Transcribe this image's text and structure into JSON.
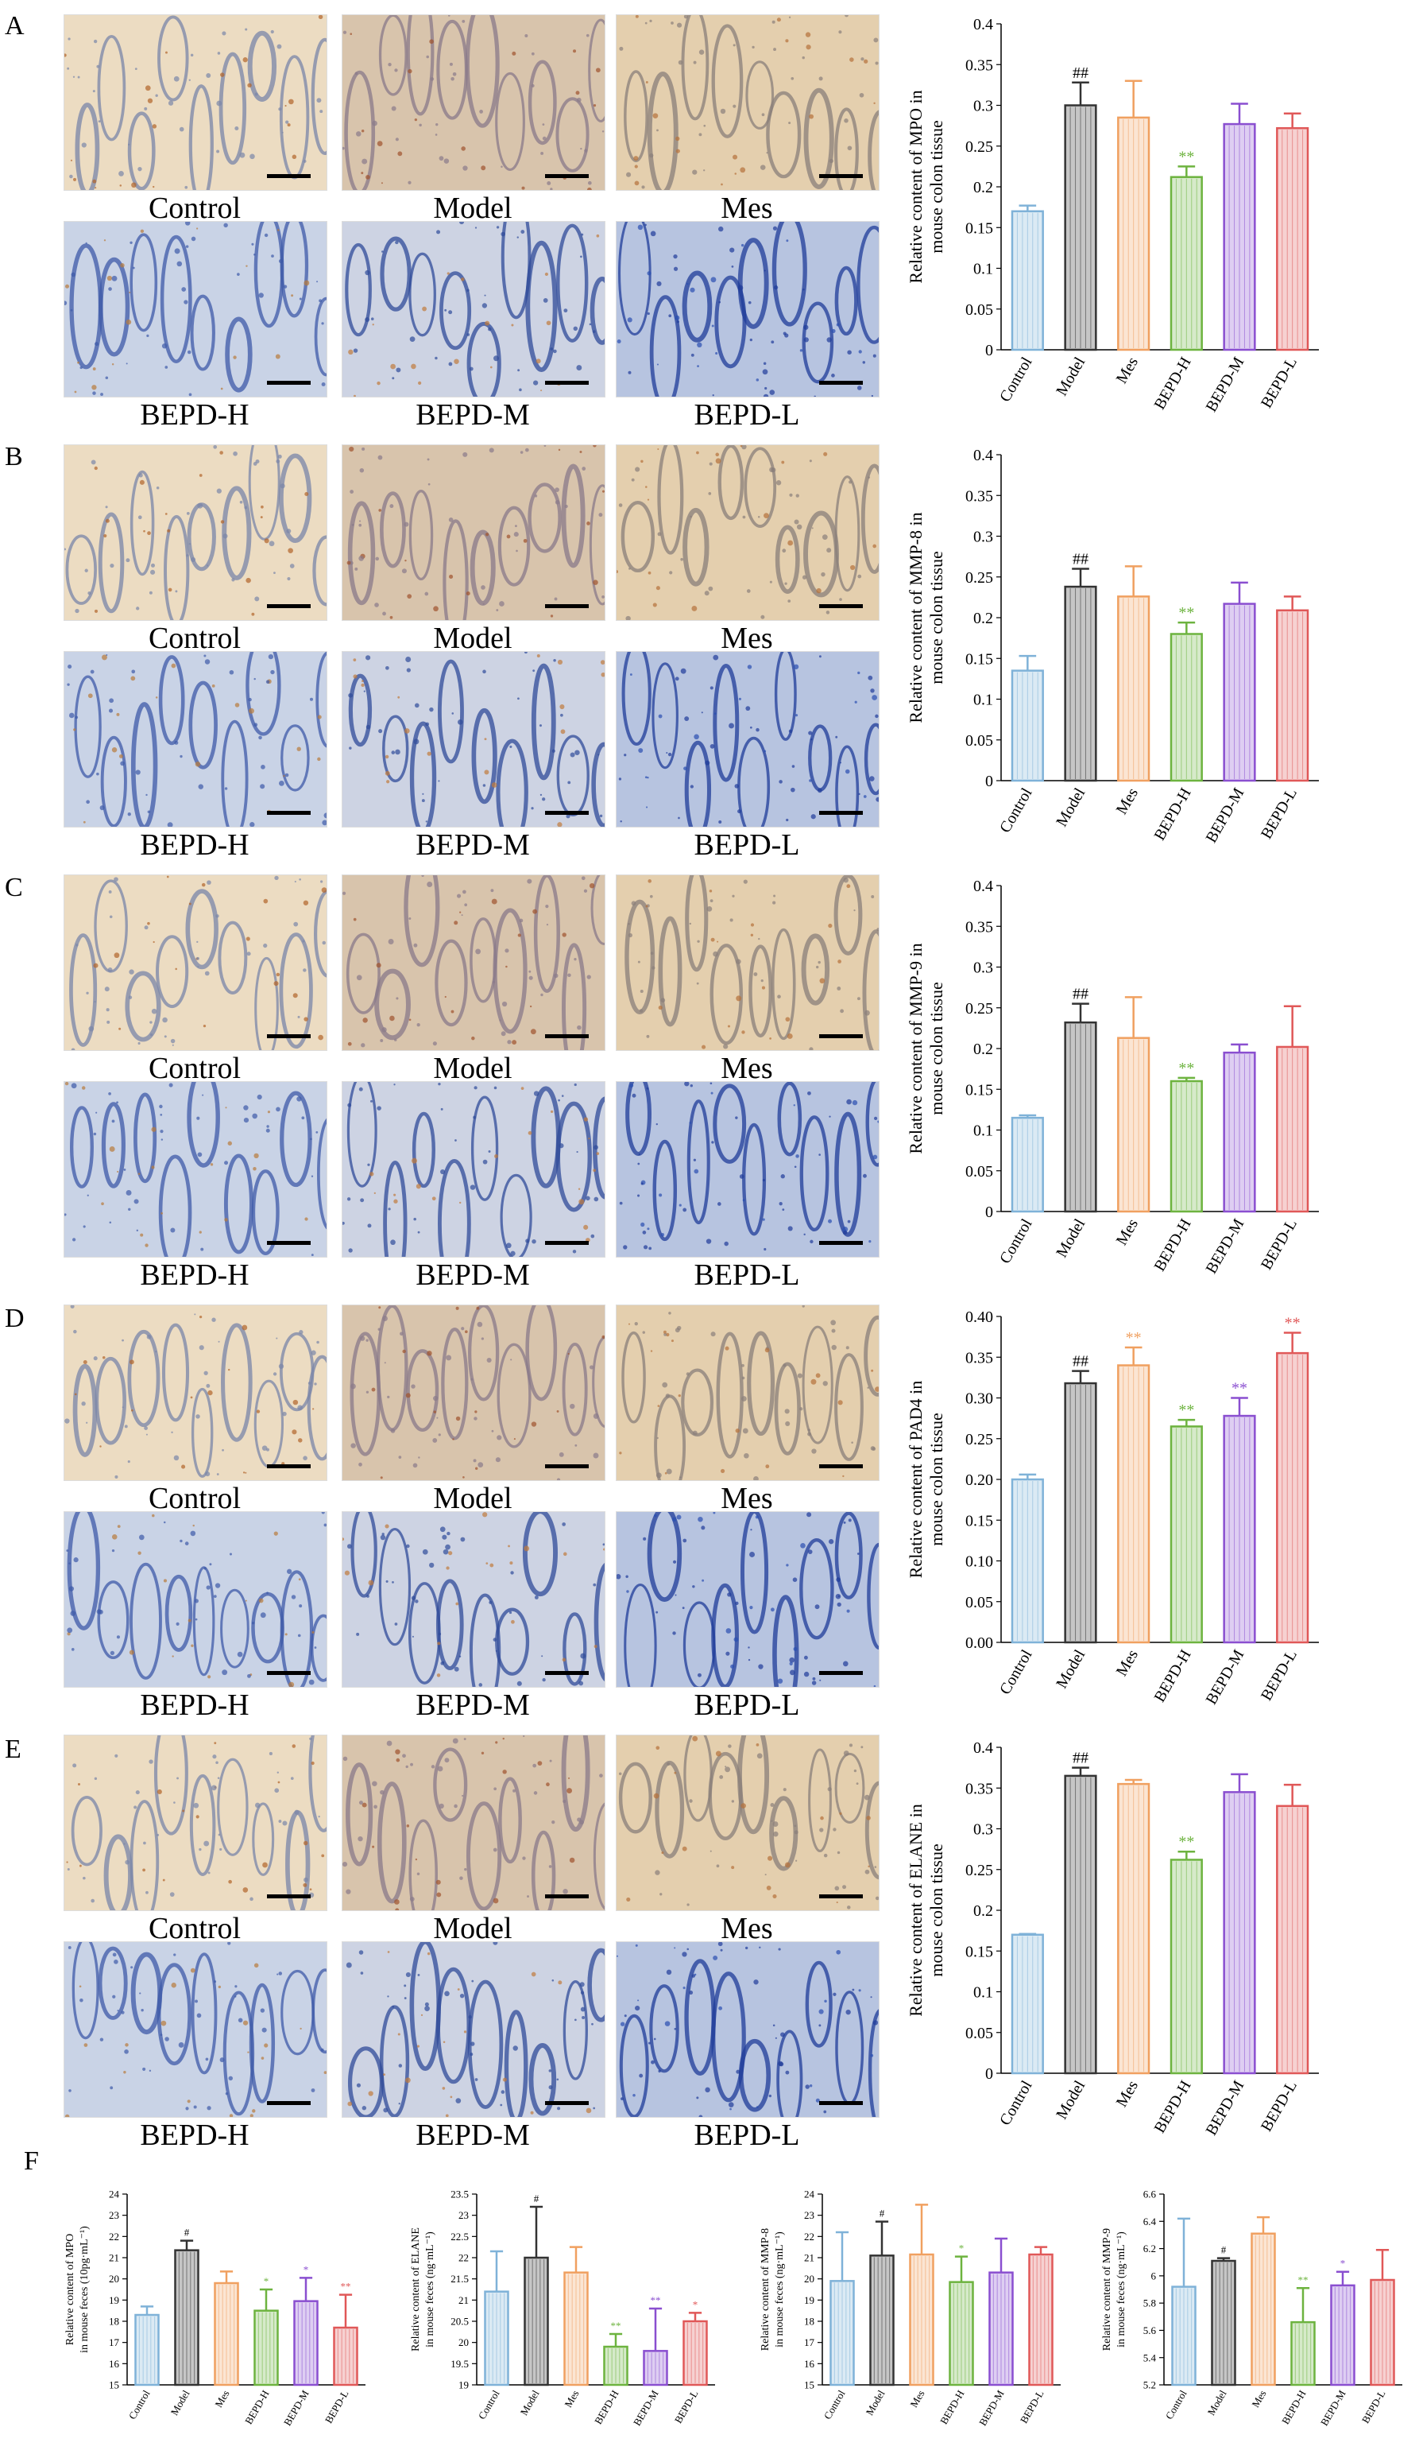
{
  "panel_letters": [
    "A",
    "B",
    "C",
    "D",
    "E",
    "F"
  ],
  "micro_groups": [
    "Control",
    "Model",
    "Mes",
    "BEPD-H",
    "BEPD-M",
    "BEPD-L"
  ],
  "colors": {
    "Control": "#7fb2d8",
    "Model": "#333333",
    "Mes": "#f0a060",
    "BEPD-H": "#6db33f",
    "BEPD-M": "#8a4fd0",
    "BEPD-L": "#e05858"
  },
  "stain_palettes": [
    {
      "bg": "#ecdcc2",
      "crypt": "#7a86a8",
      "dot": "#b2642a"
    },
    {
      "bg": "#d8c4ac",
      "crypt": "#8a7a8a",
      "dot": "#a0522d"
    },
    {
      "bg": "#e4cfae",
      "crypt": "#8a7f7a",
      "dot": "#b5703a"
    },
    {
      "bg": "#c9d3e6",
      "crypt": "#3d5aa8",
      "dot": "#b87a3a"
    },
    {
      "bg": "#cdd3e3",
      "crypt": "#2f4b9a",
      "dot": "#c07b3c"
    },
    {
      "bg": "#b7c4e0",
      "crypt": "#1f3c9a",
      "dot": "#2a4fb0"
    }
  ],
  "chart_data": [
    {
      "id": "A",
      "type": "bar",
      "categories": [
        "Control",
        "Model",
        "Mes",
        "BEPD-H",
        "BEPD-M",
        "BEPD-L"
      ],
      "values": [
        0.17,
        0.3,
        0.285,
        0.212,
        0.277,
        0.272
      ],
      "errors": [
        0.007,
        0.028,
        0.045,
        0.013,
        0.025,
        0.018
      ],
      "annotations": [
        "",
        "##",
        "",
        "**",
        "",
        ""
      ],
      "ylabel_lines": [
        "Relative content of MPO in",
        "mouse colon tissue"
      ],
      "ylim": [
        0,
        0.4
      ],
      "yticks": [
        "0",
        "0.05",
        "0.1",
        "0.15",
        "0.2",
        "0.25",
        "0.3",
        "0.35",
        "0.4"
      ]
    },
    {
      "id": "B",
      "type": "bar",
      "categories": [
        "Control",
        "Model",
        "Mes",
        "BEPD-H",
        "BEPD-M",
        "BEPD-L"
      ],
      "values": [
        0.135,
        0.238,
        0.226,
        0.18,
        0.217,
        0.209
      ],
      "errors": [
        0.018,
        0.022,
        0.037,
        0.014,
        0.026,
        0.017
      ],
      "annotations": [
        "",
        "##",
        "",
        "**",
        "",
        ""
      ],
      "ylabel_lines": [
        "Relative content of MMP-8 in",
        "mouse colon tissue"
      ],
      "ylim": [
        0,
        0.4
      ],
      "yticks": [
        "0",
        "0.05",
        "0.1",
        "0.15",
        "0.2",
        "0.25",
        "0.3",
        "0.35",
        "0.4"
      ]
    },
    {
      "id": "C",
      "type": "bar",
      "categories": [
        "Control",
        "Model",
        "Mes",
        "BEPD-H",
        "BEPD-M",
        "BEPD-L"
      ],
      "values": [
        0.115,
        0.232,
        0.213,
        0.16,
        0.195,
        0.202
      ],
      "errors": [
        0.003,
        0.023,
        0.05,
        0.004,
        0.01,
        0.05
      ],
      "annotations": [
        "",
        "##",
        "",
        "**",
        "",
        ""
      ],
      "ylabel_lines": [
        "Relative content of MMP-9 in",
        "mouse colon tissue"
      ],
      "ylim": [
        0,
        0.4
      ],
      "yticks": [
        "0",
        "0.05",
        "0.1",
        "0.15",
        "0.2",
        "0.25",
        "0.3",
        "0.35",
        "0.4"
      ]
    },
    {
      "id": "D",
      "type": "bar",
      "categories": [
        "Control",
        "Model",
        "Mes",
        "BEPD-H",
        "BEPD-M",
        "BEPD-L"
      ],
      "values": [
        0.2,
        0.318,
        0.34,
        0.265,
        0.278,
        0.355
      ],
      "errors": [
        0.006,
        0.015,
        0.022,
        0.008,
        0.022,
        0.025
      ],
      "annotations": [
        "",
        "##",
        "**",
        "**",
        "**",
        "**"
      ],
      "ylabel_lines": [
        "Relative content of PAD4 in",
        "mouse colon tissue"
      ],
      "ylim": [
        0,
        0.4
      ],
      "yticks": [
        "0.00",
        "0.05",
        "0.10",
        "0.15",
        "0.20",
        "0.25",
        "0.30",
        "0.35",
        "0.40"
      ]
    },
    {
      "id": "E",
      "type": "bar",
      "categories": [
        "Control",
        "Model",
        "Mes",
        "BEPD-H",
        "BEPD-M",
        "BEPD-L"
      ],
      "values": [
        0.17,
        0.365,
        0.355,
        0.262,
        0.345,
        0.328
      ],
      "errors": [
        0.001,
        0.01,
        0.005,
        0.01,
        0.022,
        0.026
      ],
      "annotations": [
        "",
        "##",
        "",
        "**",
        "",
        ""
      ],
      "ylabel_lines": [
        "Relative content of ELANE in",
        "mouse colon tissue"
      ],
      "ylim": [
        0,
        0.4
      ],
      "yticks": [
        "0",
        "0.05",
        "0.1",
        "0.15",
        "0.2",
        "0.25",
        "0.3",
        "0.35",
        "0.4"
      ]
    },
    {
      "id": "F1",
      "type": "bar",
      "categories": [
        "Control",
        "Model",
        "Mes",
        "BEPD-H",
        "BEPD-M",
        "BEPD-L"
      ],
      "values": [
        18.3,
        21.35,
        19.8,
        18.5,
        18.95,
        17.7
      ],
      "errors": [
        0.4,
        0.45,
        0.55,
        1.0,
        1.1,
        1.55
      ],
      "annotations": [
        "",
        "#",
        "",
        "*",
        "*",
        "**"
      ],
      "ylabel_lines": [
        "Relative content of MPO",
        "in mouse feces (10pg·mL⁻¹)"
      ],
      "ylim": [
        15,
        24
      ],
      "yticks": [
        "15",
        "16",
        "17",
        "18",
        "19",
        "20",
        "21",
        "22",
        "23",
        "24"
      ]
    },
    {
      "id": "F2",
      "type": "bar",
      "categories": [
        "Control",
        "Model",
        "Mes",
        "BEPD-H",
        "BEPD-M",
        "BEPD-L"
      ],
      "values": [
        21.2,
        22.0,
        21.65,
        19.9,
        19.8,
        20.5
      ],
      "errors": [
        0.95,
        1.2,
        0.6,
        0.3,
        1.0,
        0.2
      ],
      "annotations": [
        "",
        "#",
        "",
        "**",
        "**",
        "*"
      ],
      "ylabel_lines": [
        "Relative content of ELANE",
        "in mouse feces (ng·mL⁻¹)"
      ],
      "ylim": [
        19,
        23.5
      ],
      "yticks": [
        "19",
        "19.5",
        "20",
        "20.5",
        "21",
        "21.5",
        "22",
        "22.5",
        "23",
        "23.5"
      ]
    },
    {
      "id": "F3",
      "type": "bar",
      "categories": [
        "Control",
        "Model",
        "Mes",
        "BEPD-H",
        "BEPD-M",
        "BEPD-L"
      ],
      "values": [
        19.9,
        21.1,
        21.15,
        19.85,
        20.3,
        21.15
      ],
      "errors": [
        2.3,
        1.6,
        2.35,
        1.2,
        1.6,
        0.35
      ],
      "annotations": [
        "",
        "#",
        "",
        "*",
        "",
        ""
      ],
      "ylabel_lines": [
        "Relative content of MMP-8",
        "in mouse feces (ng·mL⁻¹)"
      ],
      "ylim": [
        15,
        24
      ],
      "yticks": [
        "15",
        "16",
        "17",
        "18",
        "19",
        "20",
        "21",
        "22",
        "23",
        "24"
      ]
    },
    {
      "id": "F4",
      "type": "bar",
      "categories": [
        "Control",
        "Model",
        "Mes",
        "BEPD-H",
        "BEPD-M",
        "BEPD-L"
      ],
      "values": [
        5.92,
        6.11,
        6.31,
        5.66,
        5.93,
        5.97
      ],
      "errors": [
        0.5,
        0.02,
        0.12,
        0.25,
        0.1,
        0.22
      ],
      "annotations": [
        "",
        "#",
        "",
        "**",
        "*",
        ""
      ],
      "ylabel_lines": [
        "Relative content of MMP-9",
        "in mouse feces (ng·mL⁻¹)"
      ],
      "ylim": [
        5.2,
        6.6
      ],
      "yticks": [
        "5.2",
        "5.4",
        "5.6",
        "5.8",
        "6",
        "6.2",
        "6.4",
        "6.6"
      ]
    }
  ]
}
